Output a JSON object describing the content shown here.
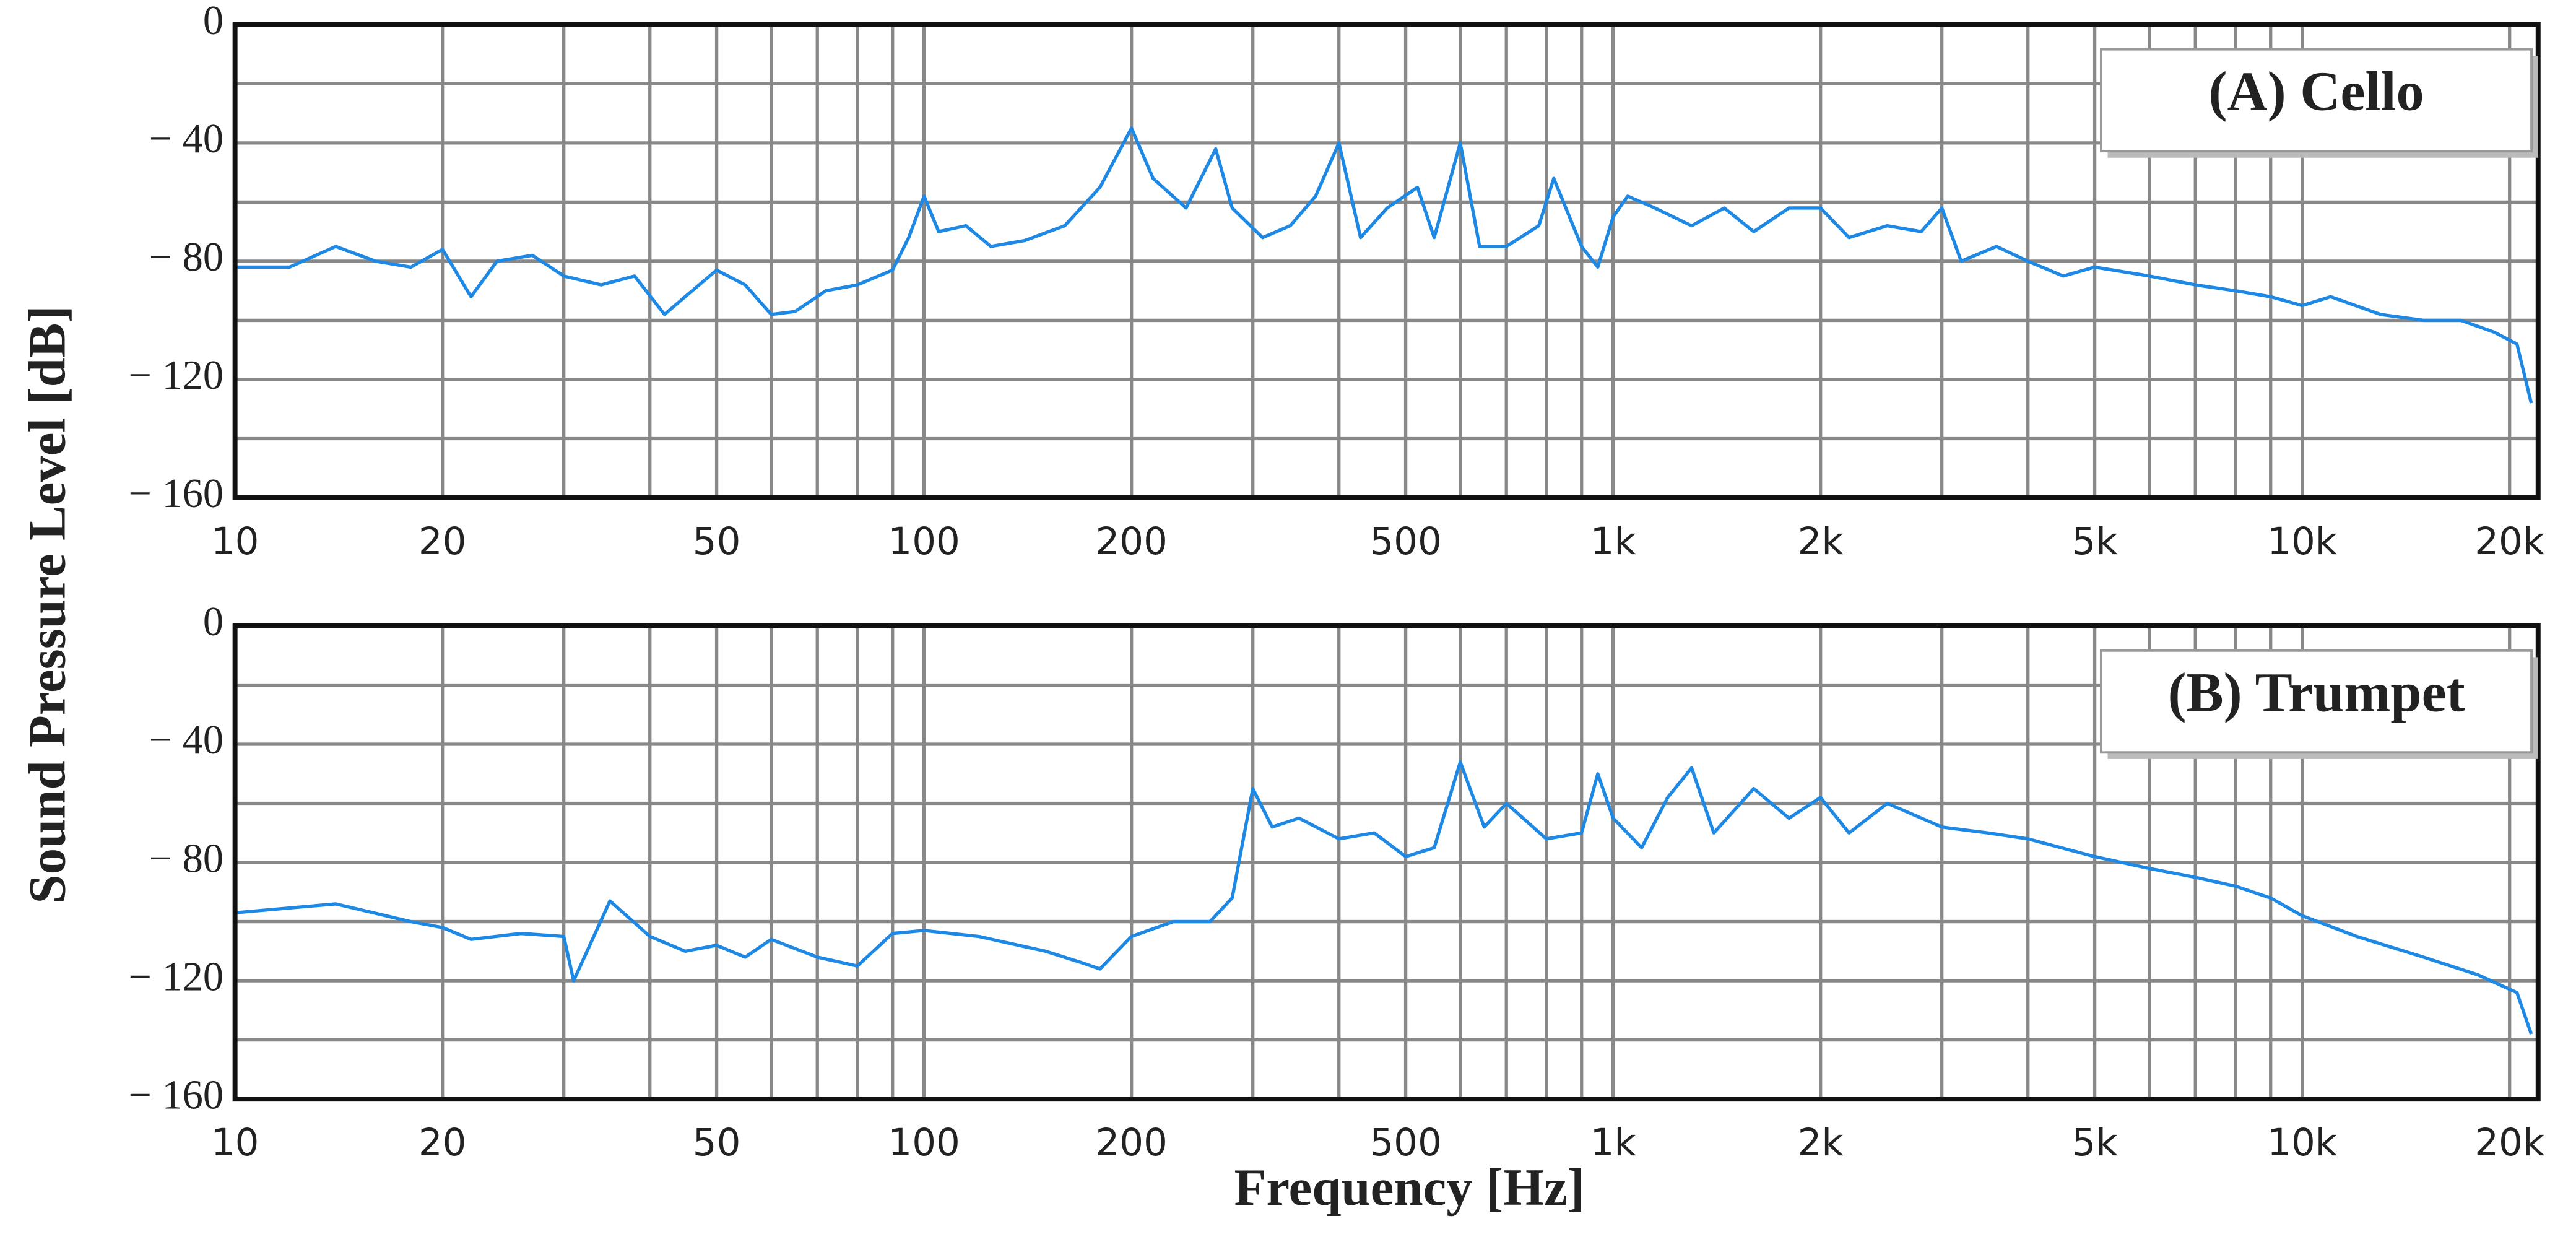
{
  "ylabel": "Sound Pressure Level [dB]",
  "xlabel": "Frequency [Hz]",
  "chart_data": [
    {
      "type": "line",
      "title": "(A) Cello",
      "xscale": "log",
      "xlim": [
        10,
        22000
      ],
      "ylim": [
        -160,
        0
      ],
      "xticks": [
        10,
        20,
        50,
        100,
        200,
        500,
        {
          "value": 1000,
          "label": "1k"
        },
        {
          "value": 2000,
          "label": "2k"
        },
        {
          "value": 5000,
          "label": "5k"
        },
        {
          "value": 10000,
          "label": "10k"
        },
        {
          "value": 20000,
          "label": "20k"
        }
      ],
      "xgrid": [
        10,
        20,
        30,
        40,
        50,
        60,
        70,
        80,
        90,
        100,
        200,
        300,
        400,
        500,
        600,
        700,
        800,
        900,
        1000,
        2000,
        3000,
        4000,
        5000,
        6000,
        7000,
        8000,
        9000,
        10000,
        20000
      ],
      "yticks": [
        0,
        {
          "value": -40,
          "label": "− 40"
        },
        {
          "value": -80,
          "label": "− 80"
        },
        {
          "value": -120,
          "label": "− 120"
        },
        {
          "value": -160,
          "label": "− 160"
        }
      ],
      "ygrid": [
        0,
        -20,
        -40,
        -60,
        -80,
        -100,
        -120,
        -140,
        -160
      ],
      "grid": true,
      "x": [
        10,
        12,
        14,
        16,
        18,
        20,
        22,
        24,
        27,
        30,
        34,
        38,
        42,
        45,
        50,
        55,
        60,
        65,
        72,
        80,
        90,
        95,
        100,
        105,
        115,
        125,
        140,
        160,
        180,
        200,
        215,
        240,
        265,
        280,
        310,
        340,
        370,
        400,
        430,
        470,
        520,
        550,
        600,
        640,
        700,
        780,
        820,
        900,
        950,
        1000,
        1050,
        1150,
        1300,
        1450,
        1600,
        1800,
        2000,
        2200,
        2500,
        2800,
        3000,
        3200,
        3600,
        4000,
        4500,
        5000,
        6000,
        7000,
        8000,
        9000,
        10000,
        11000,
        13000,
        15000,
        17000,
        19000,
        20500,
        21500
      ],
      "series": [
        {
          "color": "#1e88e5",
          "values": [
            -82,
            -82,
            -75,
            -80,
            -82,
            -76,
            -92,
            -80,
            -78,
            -85,
            -88,
            -85,
            -98,
            -92,
            -83,
            -88,
            -98,
            -97,
            -90,
            -88,
            -83,
            -72,
            -58,
            -70,
            -68,
            -75,
            -73,
            -68,
            -55,
            -35,
            -52,
            -62,
            -42,
            -62,
            -72,
            -68,
            -58,
            -40,
            -72,
            -62,
            -55,
            -72,
            -40,
            -75,
            -75,
            -68,
            -52,
            -75,
            -82,
            -65,
            -58,
            -62,
            -68,
            -62,
            -70,
            -62,
            -62,
            -72,
            -68,
            -70,
            -62,
            -80,
            -75,
            -80,
            -85,
            -82,
            -85,
            -88,
            -90,
            -92,
            -95,
            -92,
            -98,
            -100,
            -100,
            -104,
            -108,
            -128
          ]
        }
      ]
    },
    {
      "type": "line",
      "title": "(B) Trumpet",
      "xscale": "log",
      "xlim": [
        10,
        22000
      ],
      "ylim": [
        -160,
        0
      ],
      "xticks": [
        10,
        20,
        50,
        100,
        200,
        500,
        {
          "value": 1000,
          "label": "1k"
        },
        {
          "value": 2000,
          "label": "2k"
        },
        {
          "value": 5000,
          "label": "5k"
        },
        {
          "value": 10000,
          "label": "10k"
        },
        {
          "value": 20000,
          "label": "20k"
        }
      ],
      "xgrid": [
        10,
        20,
        30,
        40,
        50,
        60,
        70,
        80,
        90,
        100,
        200,
        300,
        400,
        500,
        600,
        700,
        800,
        900,
        1000,
        2000,
        3000,
        4000,
        5000,
        6000,
        7000,
        8000,
        9000,
        10000,
        20000
      ],
      "yticks": [
        0,
        {
          "value": -40,
          "label": "− 40"
        },
        {
          "value": -80,
          "label": "− 80"
        },
        {
          "value": -120,
          "label": "− 120"
        },
        {
          "value": -160,
          "label": "− 160"
        }
      ],
      "ygrid": [
        0,
        -20,
        -40,
        -60,
        -80,
        -100,
        -120,
        -140,
        -160
      ],
      "grid": true,
      "x": [
        10,
        14,
        18,
        20,
        22,
        26,
        30,
        31,
        35,
        40,
        45,
        50,
        55,
        60,
        70,
        80,
        90,
        100,
        120,
        150,
        170,
        180,
        200,
        230,
        260,
        280,
        300,
        320,
        350,
        400,
        450,
        500,
        550,
        600,
        650,
        700,
        800,
        900,
        950,
        1000,
        1100,
        1200,
        1300,
        1400,
        1600,
        1800,
        2000,
        2200,
        2500,
        3000,
        3500,
        4000,
        5000,
        6000,
        7000,
        8000,
        9000,
        10000,
        12000,
        15000,
        18000,
        20500,
        21500
      ],
      "series": [
        {
          "color": "#1e88e5",
          "values": [
            -97,
            -94,
            -100,
            -102,
            -106,
            -104,
            -105,
            -120,
            -93,
            -105,
            -110,
            -108,
            -112,
            -106,
            -112,
            -115,
            -104,
            -103,
            -105,
            -110,
            -114,
            -116,
            -105,
            -100,
            -100,
            -92,
            -55,
            -68,
            -65,
            -72,
            -70,
            -78,
            -75,
            -46,
            -68,
            -60,
            -72,
            -70,
            -50,
            -65,
            -75,
            -58,
            -48,
            -70,
            -55,
            -65,
            -58,
            -70,
            -60,
            -68,
            -70,
            -72,
            -78,
            -82,
            -85,
            -88,
            -92,
            -98,
            -105,
            -112,
            -118,
            -124,
            -138
          ]
        }
      ]
    }
  ]
}
